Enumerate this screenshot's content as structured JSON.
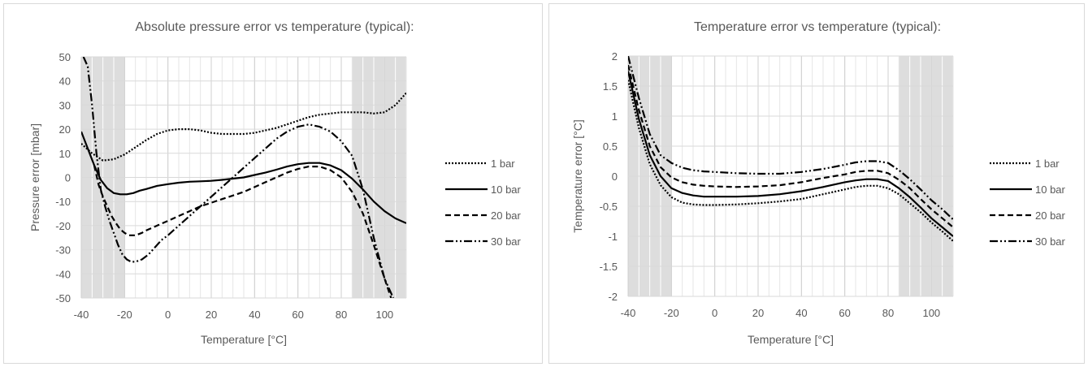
{
  "chart_data": [
    {
      "type": "line",
      "title": "Absolute pressure error vs temperature (typical):",
      "xlabel": "Temperature [°C]",
      "ylabel": "Pressure error [mbar]",
      "xlim": [
        -40,
        110
      ],
      "ylim": [
        -50,
        50
      ],
      "xticks": [
        -40,
        -20,
        0,
        20,
        40,
        60,
        80,
        100
      ],
      "yticks": [
        50,
        40,
        30,
        20,
        10,
        0,
        -10,
        -20,
        -30,
        -40,
        -50
      ],
      "grid": true,
      "shaded_ranges": [
        [
          -40,
          -20
        ],
        [
          85,
          110
        ]
      ],
      "legend_position": "right",
      "series": [
        {
          "name": "1 bar",
          "dash": "2,2",
          "x": [
            -40,
            -35,
            -30,
            -25,
            -20,
            -15,
            -10,
            -5,
            0,
            5,
            10,
            15,
            20,
            25,
            30,
            35,
            40,
            45,
            50,
            55,
            60,
            65,
            70,
            75,
            80,
            85,
            90,
            95,
            100,
            105,
            110
          ],
          "y": [
            14,
            10,
            7,
            7.5,
            9.5,
            12.5,
            15.5,
            18,
            19.5,
            20,
            20,
            19.5,
            18.5,
            18,
            18,
            18,
            18.5,
            19.5,
            20.5,
            22,
            23.5,
            25,
            26,
            26.5,
            27,
            27,
            27,
            26.5,
            27,
            30,
            35
          ]
        },
        {
          "name": "10 bar",
          "dash": "",
          "x": [
            -40,
            -37,
            -34,
            -31,
            -28,
            -25,
            -22,
            -19,
            -16,
            -13,
            -10,
            -5,
            0,
            5,
            10,
            15,
            20,
            25,
            30,
            35,
            40,
            45,
            50,
            55,
            60,
            65,
            70,
            75,
            80,
            85,
            90,
            95,
            100,
            105,
            110
          ],
          "y": [
            19,
            12,
            5,
            -1,
            -4.5,
            -6.5,
            -7,
            -7,
            -6.5,
            -5.5,
            -4.8,
            -3.5,
            -2.8,
            -2.2,
            -1.8,
            -1.6,
            -1.4,
            -1,
            -0.5,
            0,
            1,
            2,
            3.2,
            4.5,
            5.5,
            6,
            6,
            5,
            3,
            -0.5,
            -5,
            -10,
            -14,
            -17,
            -19
          ]
        },
        {
          "name": "20 bar",
          "dash": "7,4",
          "x": [
            -34,
            -32,
            -30,
            -28,
            -26,
            -24,
            -22,
            -20,
            -18,
            -15,
            -12,
            -10,
            -5,
            0,
            5,
            10,
            15,
            20,
            25,
            30,
            35,
            40,
            45,
            50,
            55,
            60,
            65,
            70,
            75,
            80,
            85,
            90,
            95,
            100,
            103
          ],
          "y": [
            5,
            -3,
            -8,
            -12,
            -16,
            -19,
            -21.5,
            -23,
            -24,
            -24,
            -23,
            -22,
            -20,
            -18,
            -16,
            -14,
            -12,
            -10.5,
            -9,
            -7.5,
            -6,
            -4,
            -2,
            0,
            2,
            3.5,
            4.5,
            4.5,
            3,
            0,
            -6,
            -15,
            -28,
            -42,
            -50
          ]
        },
        {
          "name": "30 bar",
          "dash": "10,3,2,3,2,3",
          "x": [
            -39,
            -37,
            -35,
            -33,
            -31,
            -29,
            -27,
            -25,
            -23,
            -21,
            -19,
            -17,
            -15,
            -12,
            -9,
            -6,
            -3,
            0,
            5,
            10,
            15,
            20,
            25,
            30,
            35,
            40,
            45,
            50,
            55,
            60,
            65,
            70,
            75,
            80,
            85,
            90,
            95,
            100,
            104
          ],
          "y": [
            50,
            46,
            30,
            10,
            -5,
            -12,
            -18,
            -23,
            -28,
            -32,
            -34,
            -35,
            -35,
            -34,
            -32,
            -29,
            -26,
            -24,
            -20,
            -16,
            -12,
            -8,
            -4,
            0,
            4,
            8,
            12,
            16,
            19,
            21,
            22,
            21,
            19,
            15,
            9,
            -5,
            -25,
            -42,
            -50
          ]
        }
      ]
    },
    {
      "type": "line",
      "title": "Temperature error vs temperature (typical):",
      "xlabel": "Temperature [°C]",
      "ylabel": "Temperature error [°C]",
      "xlim": [
        -40,
        110
      ],
      "ylim": [
        -2,
        2
      ],
      "xticks": [
        -40,
        -20,
        0,
        20,
        40,
        60,
        80,
        100
      ],
      "yticks": [
        "2",
        "1.5",
        "1",
        "0.5",
        "0",
        "-0.5",
        "-1",
        "-1.5",
        "-2"
      ],
      "grid": true,
      "shaded_ranges": [
        [
          -40,
          -20
        ],
        [
          85,
          110
        ]
      ],
      "legend_position": "right",
      "series": [
        {
          "name": "1 bar",
          "dash": "2,2",
          "x": [
            -40,
            -35,
            -30,
            -25,
            -20,
            -15,
            -10,
            -5,
            0,
            10,
            20,
            30,
            40,
            50,
            60,
            65,
            70,
            75,
            80,
            85,
            90,
            95,
            100,
            105,
            110
          ],
          "y": [
            1.6,
            0.8,
            0.2,
            -0.15,
            -0.35,
            -0.44,
            -0.47,
            -0.48,
            -0.48,
            -0.47,
            -0.45,
            -0.42,
            -0.38,
            -0.3,
            -0.22,
            -0.18,
            -0.16,
            -0.16,
            -0.2,
            -0.3,
            -0.45,
            -0.6,
            -0.77,
            -0.92,
            -1.08
          ]
        },
        {
          "name": "10 bar",
          "dash": "",
          "x": [
            -40,
            -35,
            -30,
            -25,
            -20,
            -15,
            -10,
            -5,
            0,
            10,
            20,
            30,
            40,
            50,
            60,
            65,
            70,
            75,
            80,
            85,
            90,
            95,
            100,
            105,
            110
          ],
          "y": [
            1.75,
            0.95,
            0.35,
            0,
            -0.2,
            -0.28,
            -0.32,
            -0.34,
            -0.34,
            -0.34,
            -0.33,
            -0.3,
            -0.25,
            -0.18,
            -0.1,
            -0.07,
            -0.05,
            -0.05,
            -0.08,
            -0.2,
            -0.35,
            -0.52,
            -0.7,
            -0.85,
            -1.0
          ]
        },
        {
          "name": "20 bar",
          "dash": "7,4",
          "x": [
            -40,
            -35,
            -30,
            -25,
            -20,
            -15,
            -10,
            -5,
            0,
            10,
            20,
            30,
            40,
            50,
            60,
            65,
            70,
            75,
            80,
            85,
            90,
            95,
            100,
            105,
            110
          ],
          "y": [
            1.85,
            1.1,
            0.5,
            0.15,
            -0.02,
            -0.1,
            -0.14,
            -0.16,
            -0.17,
            -0.18,
            -0.17,
            -0.15,
            -0.1,
            -0.03,
            0.03,
            0.07,
            0.09,
            0.09,
            0.05,
            -0.06,
            -0.2,
            -0.38,
            -0.55,
            -0.7,
            -0.85
          ]
        },
        {
          "name": "30 bar",
          "dash": "10,3,2,3,2,3",
          "x": [
            -40,
            -35,
            -30,
            -25,
            -20,
            -15,
            -10,
            -5,
            0,
            10,
            20,
            30,
            40,
            50,
            60,
            65,
            70,
            75,
            80,
            85,
            90,
            95,
            100,
            105,
            110
          ],
          "y": [
            2.0,
            1.3,
            0.7,
            0.35,
            0.22,
            0.14,
            0.1,
            0.08,
            0.07,
            0.05,
            0.04,
            0.04,
            0.07,
            0.12,
            0.19,
            0.23,
            0.25,
            0.25,
            0.22,
            0.1,
            -0.05,
            -0.22,
            -0.4,
            -0.55,
            -0.72
          ]
        }
      ]
    }
  ]
}
